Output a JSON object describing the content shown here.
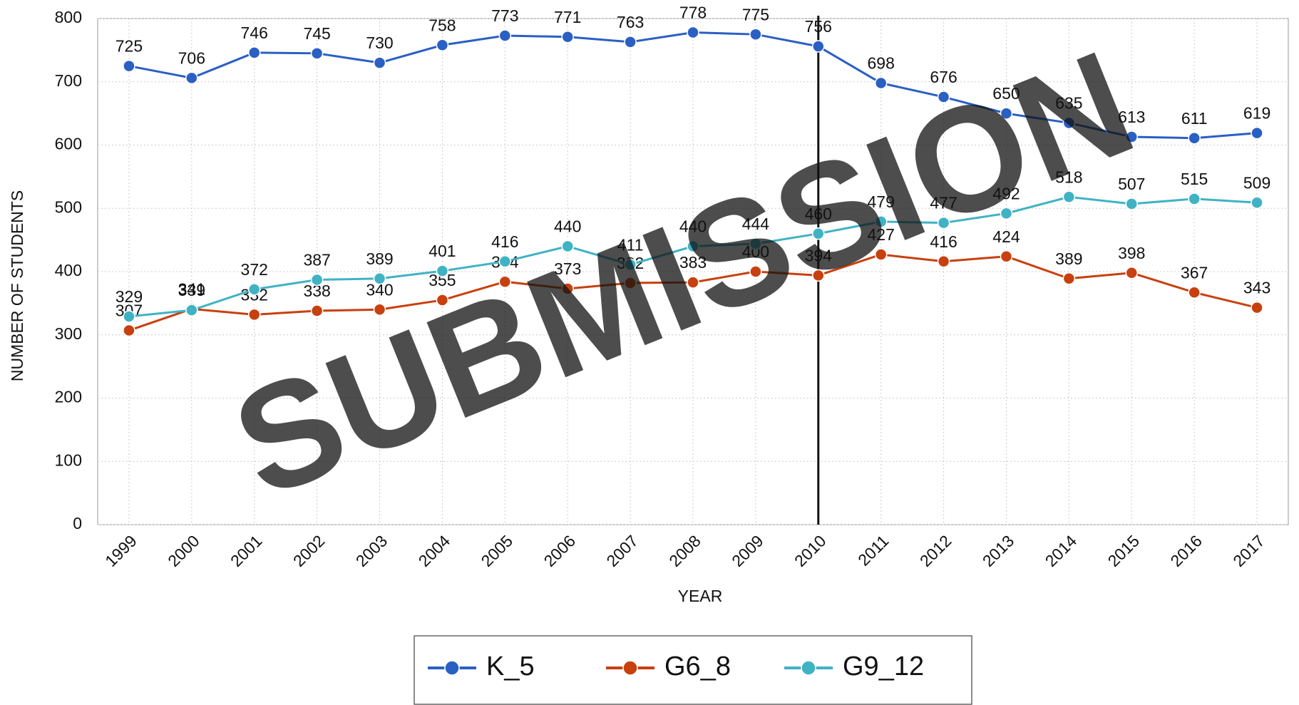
{
  "chart_data": {
    "type": "line",
    "watermark": "SUBMISSION",
    "x_label": "YEAR",
    "y_label": "NUMBER OF STUDENTS",
    "categories": [
      "1999",
      "2000",
      "2001",
      "2002",
      "2003",
      "2004",
      "2005",
      "2006",
      "2007",
      "2008",
      "2009",
      "2010",
      "2011",
      "2012",
      "2013",
      "2014",
      "2015",
      "2016",
      "2017"
    ],
    "series": [
      {
        "name": "K_5",
        "color": "#2a5fc4",
        "values": [
          725,
          706,
          746,
          745,
          730,
          758,
          773,
          771,
          763,
          778,
          775,
          756,
          698,
          676,
          650,
          635,
          613,
          611,
          619
        ]
      },
      {
        "name": "G6_8",
        "color": "#c8400e",
        "values": [
          307,
          341,
          332,
          338,
          340,
          355,
          384,
          373,
          382,
          383,
          400,
          394,
          427,
          416,
          424,
          389,
          398,
          367,
          343
        ]
      },
      {
        "name": "G9_12",
        "color": "#3fb3c4",
        "values": [
          329,
          339,
          372,
          387,
          389,
          401,
          416,
          440,
          411,
          440,
          444,
          460,
          479,
          477,
          492,
          518,
          507,
          515,
          509
        ]
      }
    ],
    "ylim": [
      0,
      800
    ],
    "yticks": [
      0,
      100,
      200,
      300,
      400,
      500,
      600,
      700,
      800
    ],
    "grid": true,
    "vertical_line": "2010",
    "legend": "bottom"
  }
}
